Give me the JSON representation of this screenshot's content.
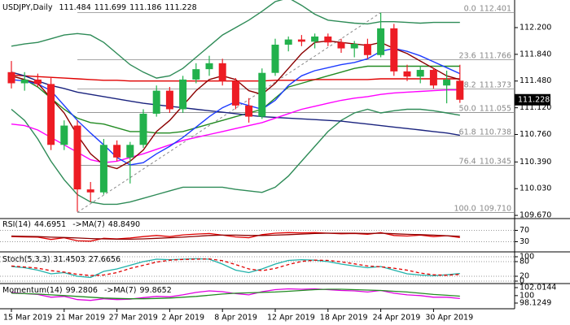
{
  "chart_data": [
    {
      "type": "candlestick",
      "title": "USDJPY,Daily",
      "categories": [
        "15 Mar 2019",
        null,
        null,
        null,
        "21 Mar 2019",
        null,
        null,
        null,
        "27 Mar 2019",
        null,
        null,
        null,
        "2 Apr 2019",
        null,
        null,
        null,
        "8 Apr 2019",
        null,
        null,
        null,
        "12 Apr 2019",
        null,
        null,
        null,
        "18 Apr 2019",
        null,
        null,
        null,
        "24 Apr 2019",
        null,
        null,
        null,
        "30 Apr 2019",
        null,
        null
      ],
      "open": [
        111.6,
        111.45,
        111.5,
        111.44,
        110.62,
        110.88,
        110.02,
        109.98,
        110.62,
        110.45,
        110.62,
        111.04,
        111.35,
        111.1,
        111.5,
        111.64,
        111.72,
        111.48,
        111.15,
        111.0,
        111.59,
        111.97,
        112.04,
        112.01,
        112.08,
        112.0,
        111.92,
        111.98,
        111.83,
        112.19,
        111.61,
        111.54,
        111.63,
        111.42,
        111.484
      ],
      "high": [
        111.75,
        111.6,
        111.58,
        111.52,
        110.95,
        110.95,
        110.12,
        110.7,
        110.68,
        110.66,
        111.1,
        111.42,
        111.4,
        111.55,
        111.72,
        111.82,
        111.78,
        111.52,
        111.25,
        111.65,
        112.05,
        112.08,
        112.1,
        112.12,
        112.12,
        112.05,
        112.02,
        112.05,
        112.4,
        112.25,
        111.7,
        111.68,
        111.66,
        111.62,
        111.699
      ],
      "low": [
        111.38,
        111.35,
        111.4,
        110.55,
        110.55,
        109.72,
        109.85,
        109.95,
        110.4,
        110.1,
        110.58,
        111.0,
        111.05,
        111.05,
        111.45,
        111.55,
        111.42,
        111.1,
        110.92,
        110.97,
        111.55,
        111.88,
        111.95,
        111.92,
        111.95,
        111.86,
        111.8,
        111.78,
        111.8,
        111.55,
        111.48,
        111.45,
        111.38,
        111.18,
        111.186
      ],
      "close": [
        111.45,
        111.5,
        111.44,
        110.62,
        110.88,
        110.02,
        109.98,
        110.62,
        110.45,
        110.62,
        111.04,
        111.35,
        111.1,
        111.5,
        111.64,
        111.72,
        111.48,
        111.15,
        111.0,
        111.59,
        111.97,
        112.04,
        112.01,
        112.08,
        112.0,
        111.92,
        111.98,
        111.83,
        112.19,
        111.61,
        111.54,
        111.63,
        111.42,
        111.5,
        111.228
      ],
      "up_color": "#22b14c",
      "down_color": "#ed1c24",
      "overlays": [
        {
          "color": "#2e8b57",
          "values": [
            111.95,
            111.98,
            112.0,
            112.05,
            112.1,
            112.12,
            112.1,
            112.0,
            111.85,
            111.7,
            111.6,
            111.52,
            111.55,
            111.65,
            111.8,
            111.95,
            112.1,
            112.2,
            112.3,
            112.42,
            112.55,
            112.6,
            112.5,
            112.38,
            112.3,
            112.28,
            112.26,
            112.25,
            112.28,
            112.28,
            112.27,
            112.26,
            112.27,
            112.27,
            112.27
          ]
        },
        {
          "color": "#2e8b57",
          "values": [
            111.1,
            110.95,
            110.7,
            110.4,
            110.15,
            109.95,
            109.85,
            109.82,
            109.82,
            109.85,
            109.9,
            109.95,
            110.0,
            110.05,
            110.05,
            110.05,
            110.05,
            110.02,
            110.0,
            109.98,
            110.05,
            110.2,
            110.4,
            110.6,
            110.8,
            110.95,
            111.05,
            111.1,
            111.05,
            111.08,
            111.1,
            111.1,
            111.08,
            111.05,
            111.02
          ]
        },
        {
          "color": "#228b22",
          "values": [
            111.55,
            111.5,
            111.4,
            111.25,
            111.1,
            110.98,
            110.92,
            110.9,
            110.85,
            110.8,
            110.8,
            110.78,
            110.78,
            110.8,
            110.85,
            110.9,
            110.95,
            111.0,
            111.05,
            111.1,
            111.25,
            111.4,
            111.45,
            111.5,
            111.55,
            111.6,
            111.65,
            111.68,
            111.68,
            111.68,
            111.68,
            111.68,
            111.68,
            111.68,
            111.68
          ]
        },
        {
          "color": "#e00000",
          "values": [
            111.56,
            111.55,
            111.54,
            111.53,
            111.52,
            111.51,
            111.5,
            111.49,
            111.49,
            111.48,
            111.48,
            111.48,
            111.48,
            111.48,
            111.48,
            111.48,
            111.48,
            111.48,
            111.48,
            111.48,
            111.49,
            111.49,
            111.49,
            111.5,
            111.5,
            111.5,
            111.5,
            111.5,
            111.51,
            111.51,
            111.51,
            111.51,
            111.51,
            111.51,
            111.51
          ]
        },
        {
          "color": "#1a237e",
          "values": [
            111.6,
            111.55,
            111.48,
            111.42,
            111.38,
            111.33,
            111.3,
            111.27,
            111.24,
            111.21,
            111.18,
            111.16,
            111.14,
            111.12,
            111.1,
            111.08,
            111.06,
            111.04,
            111.02,
            111.0,
            110.99,
            110.98,
            110.97,
            110.96,
            110.95,
            110.94,
            110.92,
            110.9,
            110.88,
            110.86,
            110.84,
            110.82,
            110.8,
            110.78,
            110.75
          ]
        },
        {
          "color": "#ff00ff",
          "values": [
            110.9,
            110.88,
            110.82,
            110.72,
            110.62,
            110.52,
            110.42,
            110.38,
            110.4,
            110.45,
            110.5,
            110.56,
            110.62,
            110.68,
            110.72,
            110.76,
            110.8,
            110.84,
            110.88,
            110.92,
            110.98,
            111.04,
            111.1,
            111.14,
            111.18,
            111.22,
            111.25,
            111.27,
            111.3,
            111.32,
            111.33,
            111.34,
            111.35,
            111.36,
            111.36
          ]
        },
        {
          "color": "#1e3cff",
          "values": [
            111.5,
            111.48,
            111.44,
            111.35,
            111.15,
            110.95,
            110.78,
            110.62,
            110.45,
            110.35,
            110.38,
            110.5,
            110.6,
            110.72,
            110.86,
            111.0,
            111.12,
            111.2,
            111.15,
            111.1,
            111.22,
            111.42,
            111.55,
            111.62,
            111.66,
            111.7,
            111.73,
            111.78,
            111.88,
            111.92,
            111.88,
            111.82,
            111.74,
            111.66,
            111.58
          ]
        },
        {
          "color": "#8b0000",
          "values": [
            111.55,
            111.5,
            111.45,
            111.25,
            111.05,
            110.75,
            110.5,
            110.35,
            110.3,
            110.4,
            110.55,
            110.8,
            110.95,
            111.15,
            111.35,
            111.5,
            111.55,
            111.5,
            111.35,
            111.3,
            111.45,
            111.65,
            111.85,
            112.0,
            112.02,
            112.0,
            111.98,
            111.96,
            112.0,
            111.92,
            111.85,
            111.75,
            111.65,
            111.55,
            111.5
          ]
        }
      ],
      "fib": {
        "levels": [
          "0.0",
          "23.6",
          "38.2",
          "50.0",
          "61.8",
          "76.4",
          "100.0"
        ],
        "prices": [
          112.401,
          111.766,
          111.373,
          111.055,
          110.738,
          110.345,
          {
            "value": 109.71,
            "label": "109.710"
          }
        ],
        "color": "#888888"
      },
      "ylim": [
        109.66,
        112.55
      ],
      "yticks": [
        {
          "value": 112.2,
          "label": "112.200"
        },
        {
          "value": 111.84,
          "label": "111.840"
        },
        {
          "value": 111.48,
          "label": "111.480"
        },
        {
          "value": 111.12,
          "label": "111.120"
        },
        {
          "value": 110.76,
          "label": "110.760"
        },
        {
          "value": 110.39,
          "label": "110.390"
        },
        {
          "value": 110.03,
          "label": "110.030"
        },
        {
          "value": 109.67,
          "label": "109.670"
        }
      ],
      "grid": false
    },
    {
      "type": "line",
      "series": [
        {
          "name": "RSI(14)",
          "color": "#e00000",
          "values": [
            48,
            47,
            46,
            38,
            44,
            33,
            32,
            42,
            40,
            43,
            48,
            52,
            48,
            54,
            57,
            59,
            53,
            47,
            44,
            55,
            60,
            62,
            61,
            62,
            60,
            58,
            59,
            56,
            62,
            52,
            50,
            53,
            48,
            51,
            44.6951
          ]
        },
        {
          "name": "->MA(7)",
          "color": "#8b0000",
          "values": [
            50,
            49,
            48,
            46,
            45,
            43,
            41,
            40,
            39,
            39,
            40,
            42,
            44,
            46,
            49,
            52,
            53,
            53,
            52,
            52,
            53,
            55,
            57,
            59,
            60,
            60,
            60,
            59,
            60,
            58,
            56,
            55,
            53,
            51,
            48.849
          ],
          "value_labels": [
            null,
            null,
            null,
            null,
            null,
            null,
            null,
            null,
            null,
            null,
            null,
            null,
            null,
            null,
            null,
            null,
            null,
            null,
            null,
            null,
            null,
            null,
            null,
            null,
            null,
            null,
            null,
            null,
            null,
            null,
            null,
            null,
            null,
            null,
            "48.8490"
          ]
        }
      ],
      "ylim": [
        0,
        100
      ],
      "yticks": [
        70,
        30
      ],
      "grid": true
    },
    {
      "type": "line",
      "series": [
        {
          "name": "Stoch(5,3,3)",
          "color": "#20b2aa",
          "values": [
            60,
            55,
            45,
            30,
            35,
            20,
            15,
            40,
            50,
            65,
            80,
            90,
            88,
            90,
            92,
            90,
            70,
            45,
            35,
            50,
            70,
            85,
            88,
            86,
            80,
            70,
            62,
            55,
            60,
            45,
            30,
            25,
            22,
            26,
            31.4503
          ]
        },
        {
          "color": "#e00000",
          "style": "dashed",
          "values": [
            62,
            58,
            53,
            43,
            37,
            28,
            23,
            25,
            35,
            52,
            65,
            78,
            86,
            89,
            90,
            91,
            84,
            68,
            50,
            43,
            52,
            68,
            81,
            86,
            85,
            79,
            71,
            62,
            59,
            53,
            45,
            33,
            26,
            24,
            27.6656
          ]
        }
      ],
      "ylim": [
        0,
        100
      ],
      "yticks": [
        100,
        80,
        20,
        0
      ],
      "grid": true
    },
    {
      "type": "line",
      "series": [
        {
          "name": "Momentum(14)",
          "color": "#e000e0",
          "values": [
            100.8,
            100.5,
            100.3,
            99.6,
            99.8,
            99.0,
            98.8,
            99.2,
            99.0,
            99.1,
            99.5,
            99.8,
            99.7,
            100.2,
            100.8,
            101.2,
            101.0,
            100.5,
            100.2,
            101.0,
            101.5,
            101.7,
            101.6,
            101.7,
            101.5,
            101.3,
            101.2,
            100.9,
            101.3,
            100.6,
            100.2,
            100.0,
            99.6,
            99.6,
            99.2806
          ]
        },
        {
          "name": "->MA(7)",
          "color": "#228b22",
          "values": [
            100.6,
            100.5,
            100.4,
            100.2,
            100.0,
            99.8,
            99.6,
            99.4,
            99.3,
            99.2,
            99.2,
            99.3,
            99.4,
            99.6,
            99.8,
            100.1,
            100.4,
            100.6,
            100.7,
            100.8,
            100.9,
            101.1,
            101.3,
            101.5,
            101.6,
            101.6,
            101.5,
            101.4,
            101.3,
            101.1,
            100.9,
            100.6,
            100.3,
            100.1,
            99.8652
          ]
        }
      ],
      "ylim": [
        98.1249,
        102.0144
      ],
      "yticks": [
        102.0144,
        100,
        98.1249
      ],
      "grid": false
    }
  ]
}
